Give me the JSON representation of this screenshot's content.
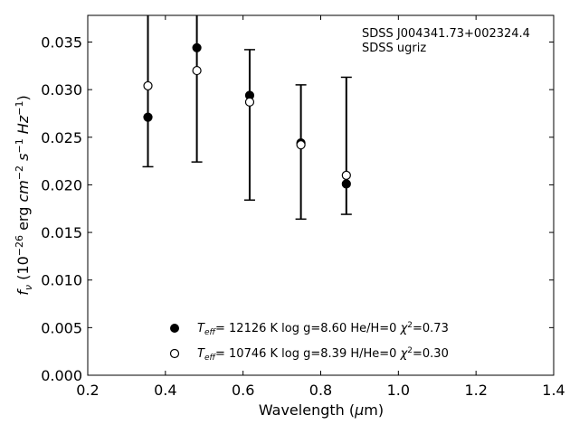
{
  "chart_data": {
    "type": "scatter",
    "xlabel": "Wavelength (μm)",
    "ylabel": "f_ν (10^-26 erg cm^-2 s^-1 Hz^-1)",
    "xlim": [
      0.2,
      1.4
    ],
    "ylim": [
      0.0,
      0.0378
    ],
    "xticks": [
      0.2,
      0.4,
      0.6,
      0.8,
      1.0,
      1.2,
      1.4
    ],
    "yticks": [
      0.0,
      0.005,
      0.01,
      0.015,
      0.02,
      0.025,
      0.03,
      0.035
    ],
    "xtick_labels": [
      "0.2",
      "0.4",
      "0.6",
      "0.8",
      "1.0",
      "1.2",
      "1.4"
    ],
    "ytick_labels": [
      "0.000",
      "0.005",
      "0.010",
      "0.015",
      "0.020",
      "0.025",
      "0.030",
      "0.035"
    ],
    "grid": false,
    "annotations": [
      "SDSS J004341.73+002324.4",
      "SDSS ugriz"
    ],
    "observed": {
      "x": [
        0.355,
        0.481,
        0.617,
        0.749,
        0.866
      ],
      "y": [
        0.0271,
        0.0344,
        0.0294,
        0.0244,
        0.0201
      ],
      "err_low": [
        0.0219,
        0.0224,
        0.0184,
        0.0164,
        0.0169
      ],
      "err_high": [
        0.0378,
        0.0378,
        0.0342,
        0.0305,
        0.0313
      ]
    },
    "series": [
      {
        "marker": "filled-circle",
        "label": {
          "teff_value": "= 12126 K  log g=8.60  He/H=0  ",
          "chi": "=0.73"
        },
        "x": [
          0.355,
          0.481,
          0.617,
          0.749,
          0.866
        ],
        "y": [
          0.0271,
          0.0344,
          0.0294,
          0.0244,
          0.0201
        ]
      },
      {
        "marker": "open-circle",
        "label": {
          "teff_value": "= 10746 K  log g=8.39  H/He=0  ",
          "chi": "=0.30"
        },
        "x": [
          0.355,
          0.481,
          0.617,
          0.749,
          0.866
        ],
        "y": [
          0.0304,
          0.032,
          0.0287,
          0.0242,
          0.021
        ]
      }
    ]
  }
}
